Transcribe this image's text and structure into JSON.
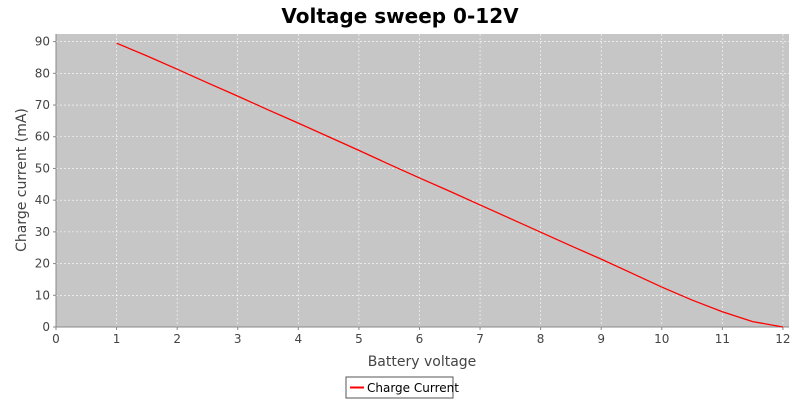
{
  "chart_data": {
    "type": "line",
    "title": "Voltage sweep 0-12V",
    "xlabel": "Battery voltage",
    "ylabel": "Charge current (mA)",
    "xlim": [
      0,
      12.1
    ],
    "ylim": [
      0,
      92.4
    ],
    "xticks": [
      0,
      1,
      2,
      3,
      4,
      5,
      6,
      7,
      8,
      9,
      10,
      11,
      12
    ],
    "yticks": [
      0,
      10,
      20,
      30,
      40,
      50,
      60,
      70,
      80,
      90
    ],
    "grid": true,
    "legend_position": "bottom-center",
    "colors": {
      "plot_background": "#c6c6c6",
      "grid": "#ffffff",
      "axis": "#888888",
      "text": "#444444"
    },
    "series": [
      {
        "name": "Charge Current",
        "color": "#ff0000",
        "x": [
          1,
          1.5,
          2,
          2.5,
          3,
          3.5,
          4,
          4.5,
          5,
          5.5,
          6,
          6.5,
          7,
          7.5,
          8,
          8.5,
          9,
          9.5,
          10,
          10.5,
          11,
          11.5,
          12
        ],
        "y": [
          89.5,
          85.5,
          81.3,
          77.0,
          72.8,
          68.5,
          64.3,
          60.0,
          55.7,
          51.3,
          47.0,
          42.8,
          38.5,
          34.2,
          29.9,
          25.6,
          21.4,
          17.0,
          12.6,
          8.5,
          4.8,
          1.7,
          0
        ]
      }
    ]
  }
}
